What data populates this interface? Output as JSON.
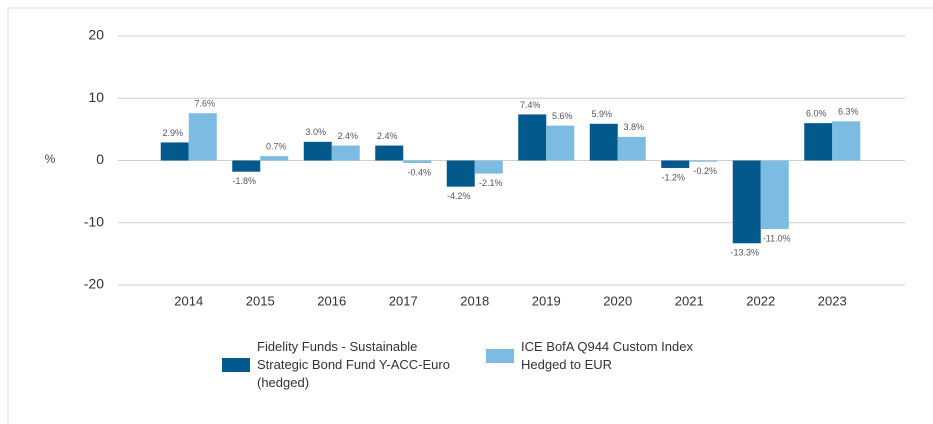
{
  "chart_data": {
    "type": "bar",
    "y_label": "%",
    "categories": [
      "2014",
      "2015",
      "2016",
      "2017",
      "2018",
      "2019",
      "2020",
      "2021",
      "2022",
      "2023"
    ],
    "series": [
      {
        "name": "Fidelity Funds - Sustainable Strategic Bond Fund Y-ACC-Euro (hedged)",
        "color": "#04598c",
        "values": [
          2.9,
          -1.8,
          3.0,
          2.4,
          -4.2,
          7.4,
          5.9,
          -1.2,
          -13.3,
          6.0
        ],
        "value_labels": [
          "2.9%",
          "-1.8%",
          "3.0%",
          "2.4%",
          "-4.2%",
          "7.4%",
          "5.9%",
          "-1.2%",
          "-13.3%",
          "6.0%"
        ]
      },
      {
        "name": "ICE BofA Q944 Custom Index Hedged to EUR",
        "color": "#7dbce2",
        "values": [
          7.6,
          0.7,
          2.4,
          -0.4,
          -2.1,
          5.6,
          3.8,
          -0.2,
          -11.0,
          6.3
        ],
        "value_labels": [
          "7.6%",
          "0.7%",
          "2.4%",
          "-0.4%",
          "-2.1%",
          "5.6%",
          "3.8%",
          "-0.2%",
          "-11.0%",
          "6.3%"
        ]
      }
    ],
    "ylim": [
      -20,
      20
    ],
    "yticks": [
      20,
      10,
      0,
      -10,
      -20
    ],
    "grid": true
  }
}
